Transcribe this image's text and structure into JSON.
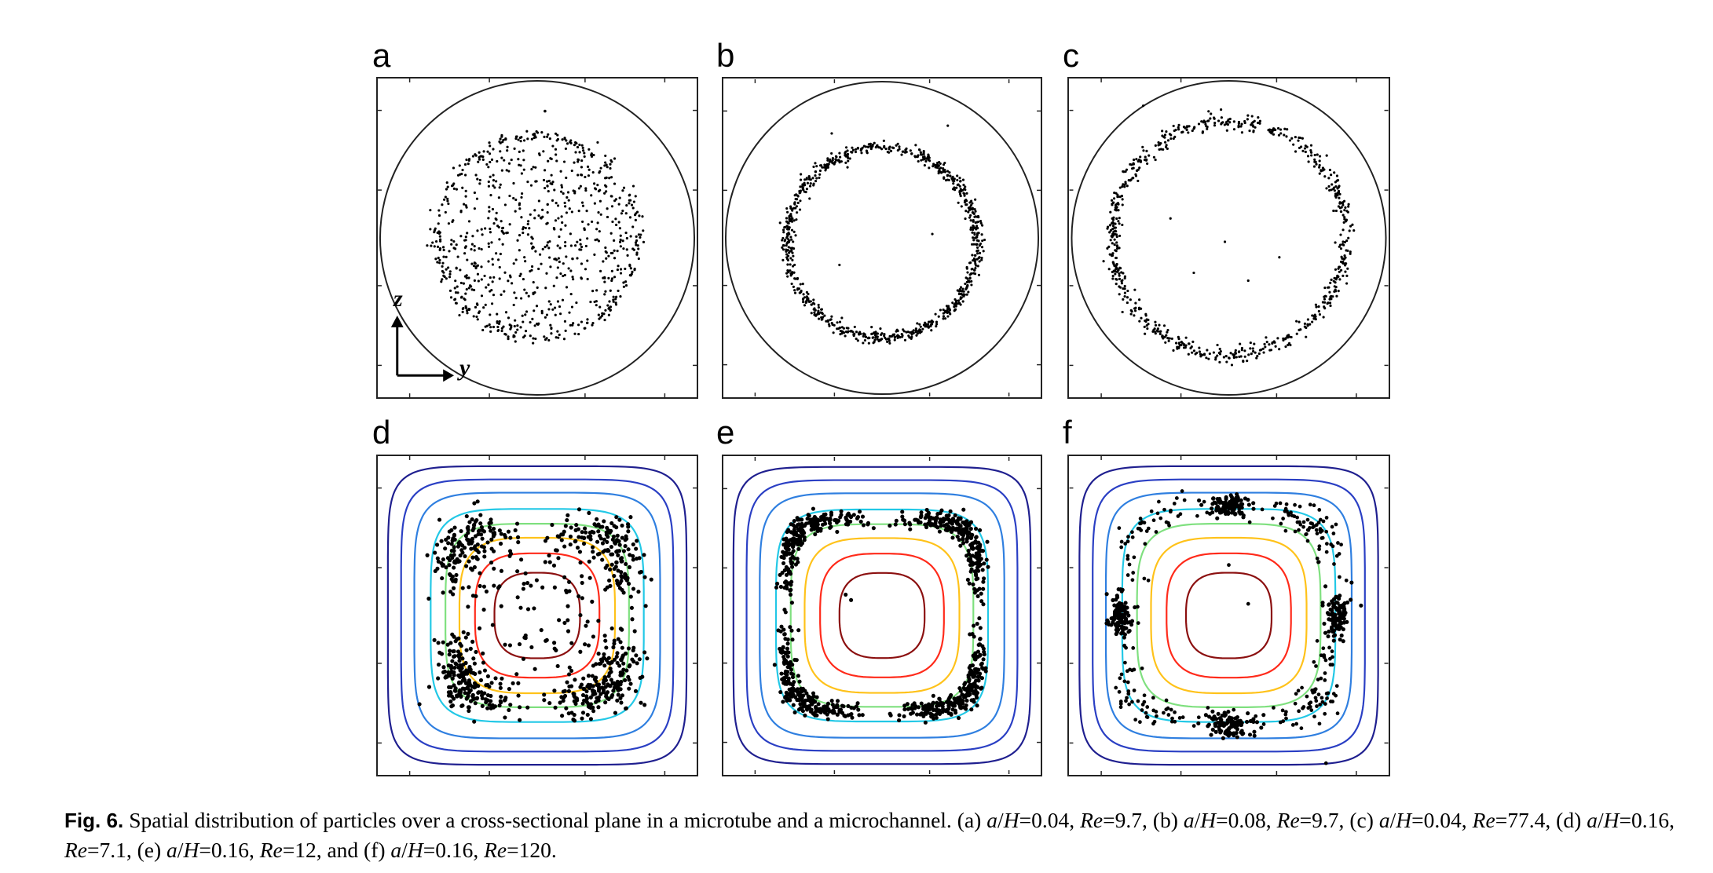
{
  "figure": {
    "panels": [
      {
        "id": "a",
        "label": "a",
        "shape": "circle",
        "distribution": "uniform-disk",
        "a_over_H": "0.04",
        "Re": "9.7"
      },
      {
        "id": "b",
        "label": "b",
        "shape": "circle",
        "distribution": "ring",
        "a_over_H": "0.08",
        "Re": "9.7"
      },
      {
        "id": "c",
        "label": "c",
        "shape": "circle",
        "distribution": "ring-wide",
        "a_over_H": "0.04",
        "Re": "77.4"
      },
      {
        "id": "d",
        "label": "d",
        "shape": "square",
        "distribution": "broad-band",
        "a_over_H": "0.16",
        "Re": "7.1"
      },
      {
        "id": "e",
        "label": "e",
        "shape": "square",
        "distribution": "square-ring",
        "a_over_H": "0.16",
        "Re": "12"
      },
      {
        "id": "f",
        "label": "f",
        "shape": "square",
        "distribution": "four-clusters",
        "a_over_H": "0.16",
        "Re": "120"
      }
    ],
    "axes": {
      "vertical": "z",
      "horizontal": "y"
    },
    "contour_colors": [
      "#1f1f8f",
      "#2a3fc4",
      "#2f7fe0",
      "#22c8e6",
      "#7fe07f",
      "#ffc21a",
      "#ff2a1a",
      "#8b0f0f"
    ]
  },
  "caption": {
    "label": "Fig. 6.",
    "text": "Spatial distribution of particles over a cross-sectional plane in a microtube and a microchannel. (a) a/H=0.04, Re=9.7, (b) a/H=0.08, Re=9.7, (c) a/H=0.04, Re=77.4, (d) a/H=0.16, Re=7.1, (e) a/H=0.16, Re=12, and (f) a/H=0.16, Re=120."
  }
}
